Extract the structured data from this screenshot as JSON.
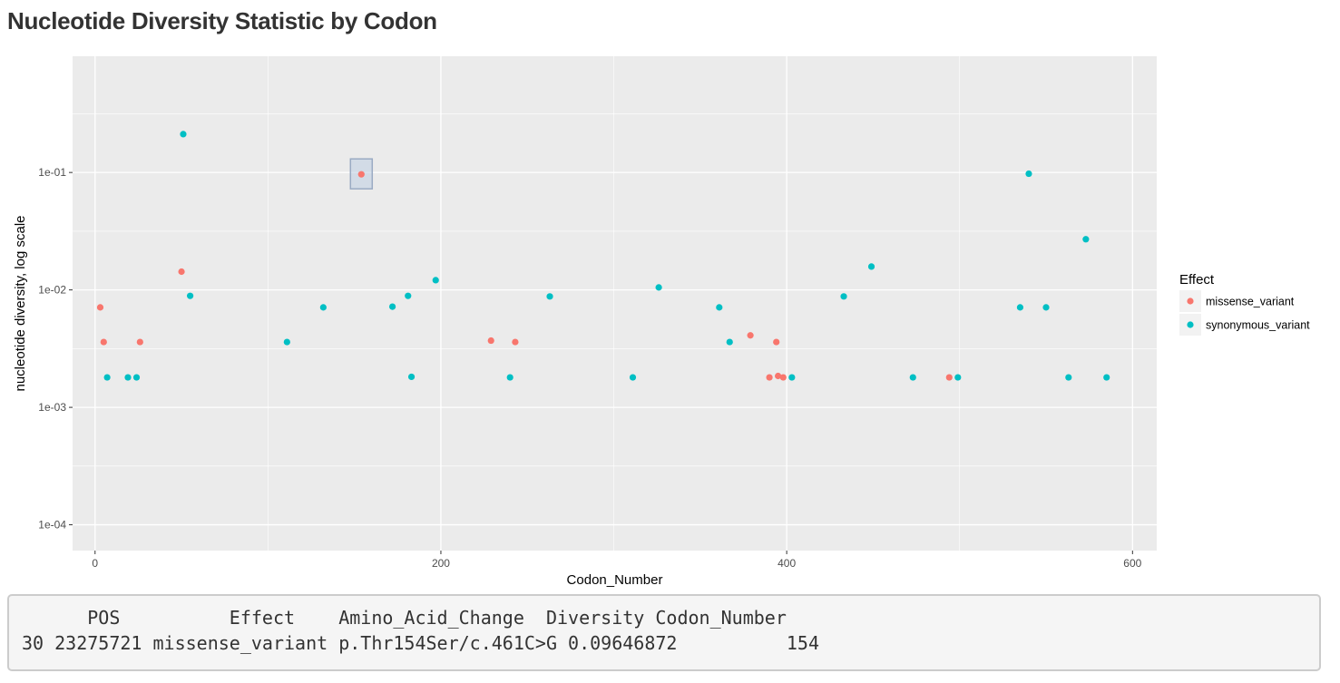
{
  "page": {
    "title": "Nucleotide Diversity Statistic by Codon"
  },
  "chart_data": {
    "type": "scatter",
    "title": "",
    "xlabel": "Codon_Number",
    "ylabel": "nucleotide diversity, log scale",
    "xlim": [
      -13,
      614
    ],
    "ylim": [
      6.03e-05,
      0.977
    ],
    "y_scale": "log10",
    "x_ticks": [
      0,
      200,
      400,
      600
    ],
    "x_tick_labels": [
      "0",
      "200",
      "400",
      "600"
    ],
    "y_ticks": [
      0.0001,
      0.001,
      0.01,
      0.1
    ],
    "y_tick_labels": [
      "1e-04",
      "1e-03",
      "1e-02",
      "1e-01"
    ],
    "grid": true,
    "background": "#ebebeb",
    "legend": {
      "title": "Effect",
      "position": "right"
    },
    "series": [
      {
        "name": "missense_variant",
        "color": "#f8766d",
        "x": [
          3,
          5,
          26,
          50,
          154,
          229,
          243,
          379,
          390,
          394,
          395,
          398,
          494
        ],
        "y": [
          0.0071,
          0.0036,
          0.0036,
          0.0143,
          0.09646872,
          0.0037,
          0.0036,
          0.0041,
          0.0018,
          0.0036,
          0.00185,
          0.0018,
          0.0018
        ]
      },
      {
        "name": "synonymous_variant",
        "color": "#00bfc4",
        "x": [
          7,
          19,
          24,
          51,
          55,
          111,
          132,
          172,
          181,
          183,
          197,
          240,
          263,
          311,
          326,
          361,
          367,
          403,
          433,
          449,
          473,
          499,
          535,
          540,
          550,
          563,
          573,
          585
        ],
        "y": [
          0.0018,
          0.0018,
          0.0018,
          0.212,
          0.0089,
          0.0036,
          0.0071,
          0.0072,
          0.0089,
          0.00182,
          0.0121,
          0.0018,
          0.0088,
          0.0018,
          0.0105,
          0.0071,
          0.0036,
          0.0018,
          0.0088,
          0.0158,
          0.0018,
          0.0018,
          0.0071,
          0.0976,
          0.0071,
          0.0018,
          0.027,
          0.0018
        ]
      }
    ],
    "highlight": {
      "series": "missense_variant",
      "x": 154,
      "y": 0.09646872
    }
  },
  "verbatim": {
    "header": "      POS          Effect    Amino_Acid_Change  Diversity Codon_Number",
    "row": "30 23275721 missense_variant p.Thr154Ser/c.461C>G 0.09646872          154"
  }
}
